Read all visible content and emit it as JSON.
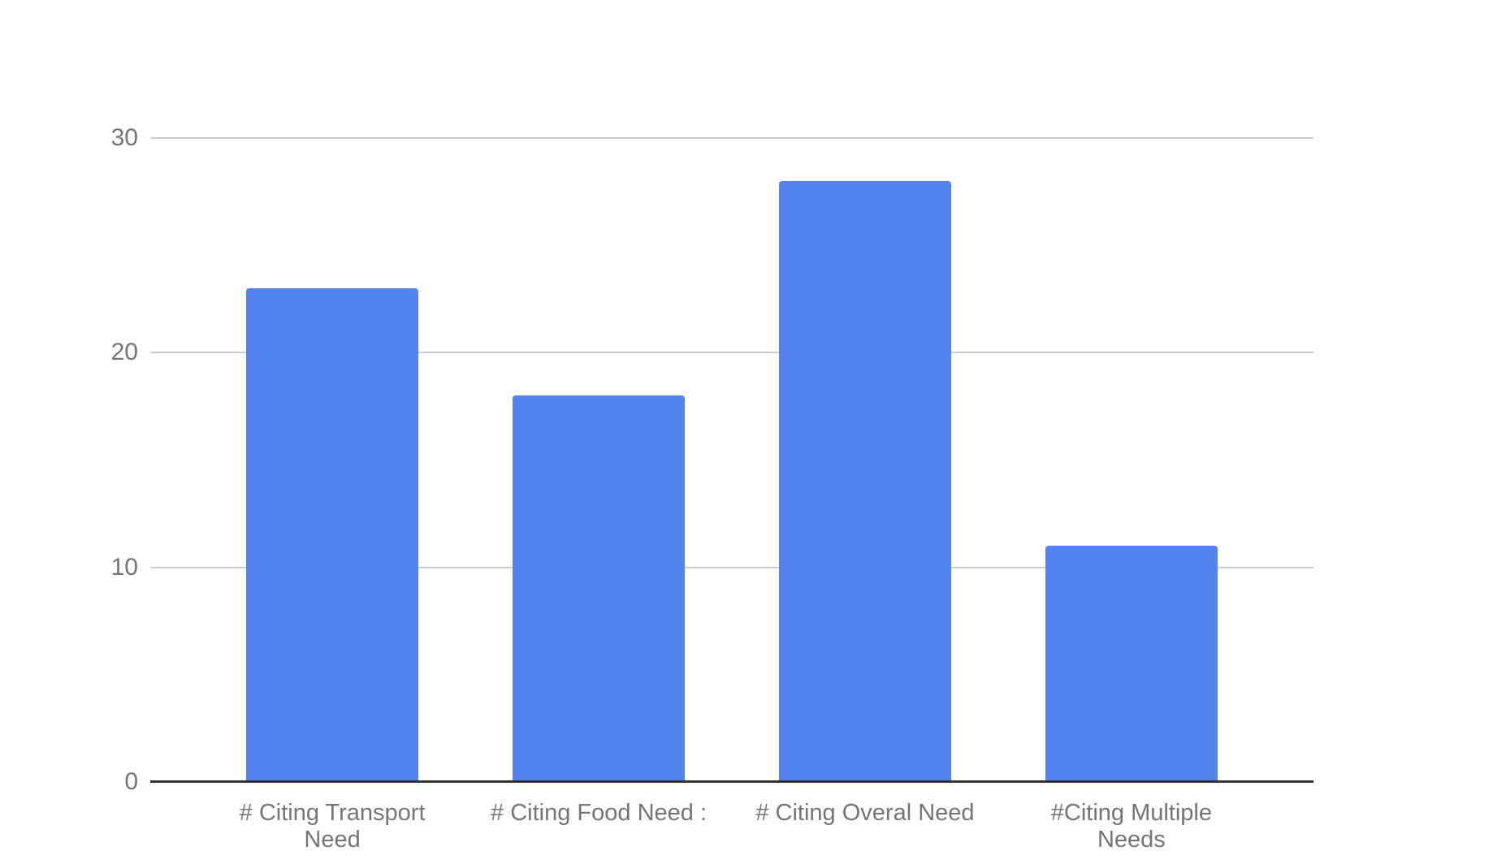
{
  "chart_data": {
    "type": "bar",
    "categories": [
      "# Citing Transport\nNeed",
      "# Citing Food Need :",
      "# Citing Overal Need",
      "#Citing Multiple\nNeeds"
    ],
    "values": [
      23,
      18,
      28,
      11
    ],
    "title": "",
    "xlabel": "",
    "ylabel": "",
    "ylim": [
      0,
      30
    ],
    "yticks": [
      0,
      10,
      20,
      30
    ],
    "grid": true,
    "legend": "none",
    "colors": {
      "bar": "#5383ec",
      "axis_label": "#757575",
      "gridline": "#cccccc",
      "baseline": "#333333",
      "background": "#ffffff"
    }
  }
}
